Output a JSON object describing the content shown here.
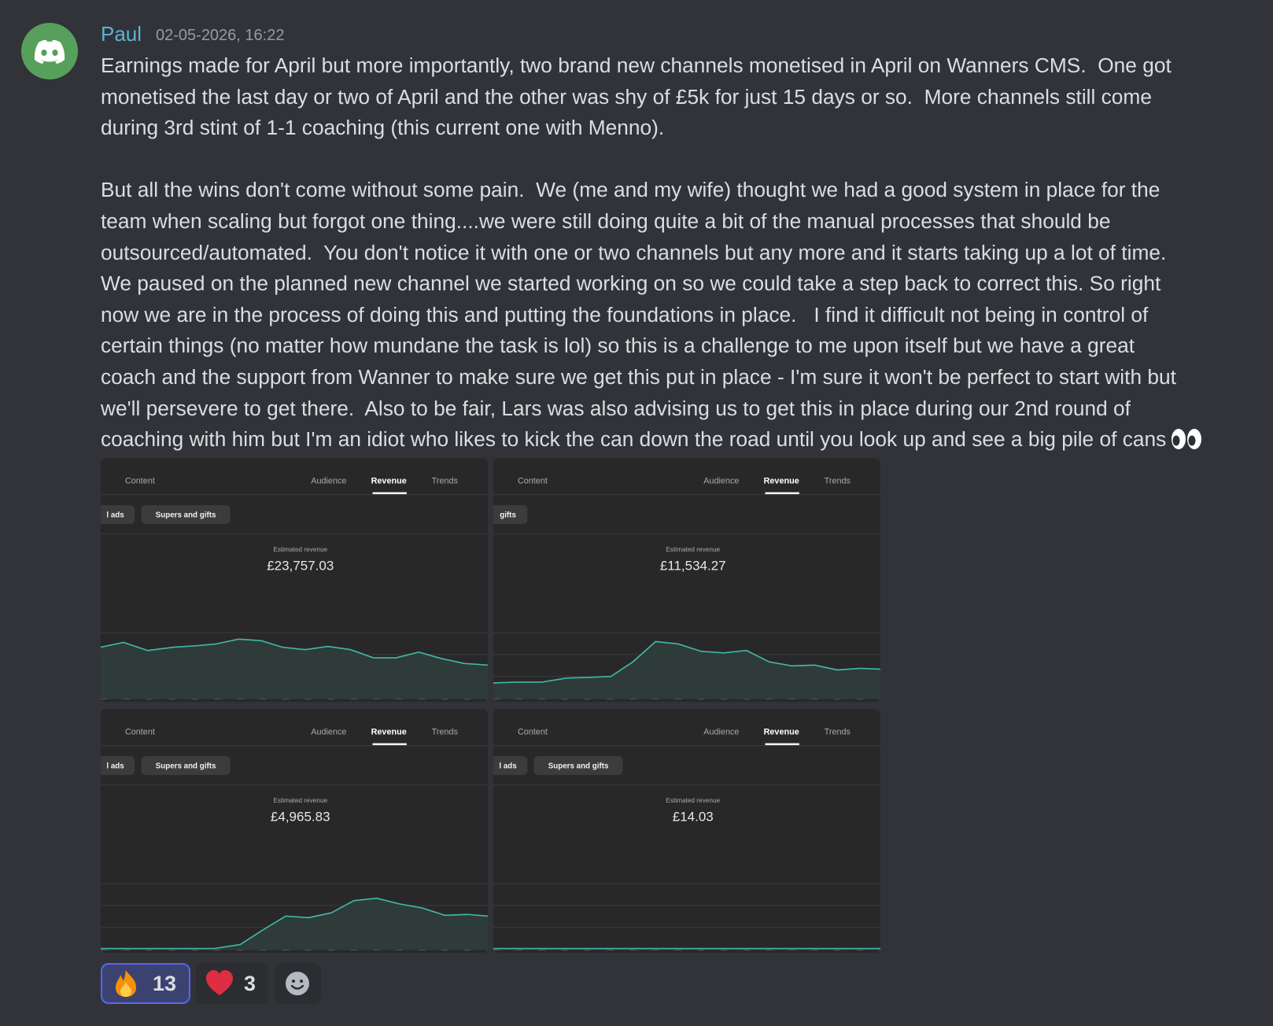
{
  "message": {
    "author": "Paul",
    "timestamp": "02-05-2026, 16:22",
    "paragraphs": [
      [
        "Earnings made for April but more importantly, two brand new channels monetised in April on Wanners CMS.  One got",
        "monetised the last day or two of April and the other was shy of £5k for just 15 days or so.  More channels still come",
        "during 3rd stint of 1-1 coaching (this current one with Menno)."
      ],
      [
        "But all the wins don't come without some pain.  We (me and my wife) thought we had a good system in place for the",
        "team when scaling but forgot one thing....we were still doing quite a bit of the manual processes that should be",
        "outsourced/automated.  You don't notice it with one or two channels but any more and it starts taking up a lot of time.",
        "We paused on the planned new channel we started working on so we could take a step back to correct this. So right",
        "now we are in the process of doing this and putting the foundations in place.   I find it difficult not being in control of",
        "certain things (no matter how mundane the task is lol) so this is a challenge to me upon itself but we have a great",
        "coach and the support from Wanner to make sure we get this put in place - I'm sure it won't be perfect to start with but",
        "we'll persevere to get there.  Also to be fair, Lars was also advising us to get this in place during our 2nd round of",
        "coaching with him but I'm an idiot who likes to kick the can down the road until you look up and see a big pile of cans"
      ]
    ],
    "attachments": [
      {
        "tabs": [
          "Content",
          "Audience",
          "Revenue",
          "Trends"
        ],
        "chips": [
          "l ads",
          "Supers and gifts"
        ],
        "metric_label": "Estimated revenue",
        "metric_value": "£23,757.03"
      },
      {
        "tabs": [
          "Content",
          "Audience",
          "Revenue",
          "Trends"
        ],
        "chips": [
          "gifts"
        ],
        "metric_label": "Estimated revenue",
        "metric_value": "£11,534.27"
      },
      {
        "tabs": [
          "Content",
          "Audience",
          "Revenue",
          "Trends"
        ],
        "chips": [
          "l ads",
          "Supers and gifts"
        ],
        "metric_label": "Estimated revenue",
        "metric_value": "£4,965.83"
      },
      {
        "tabs": [
          "Content",
          "Audience",
          "Revenue",
          "Trends"
        ],
        "chips": [
          "l ads",
          "Supers and gifts"
        ],
        "metric_label": "Estimated revenue",
        "metric_value": "£14.03"
      }
    ],
    "reactions": [
      {
        "count": 13
      },
      {
        "count": 3
      }
    ]
  }
}
